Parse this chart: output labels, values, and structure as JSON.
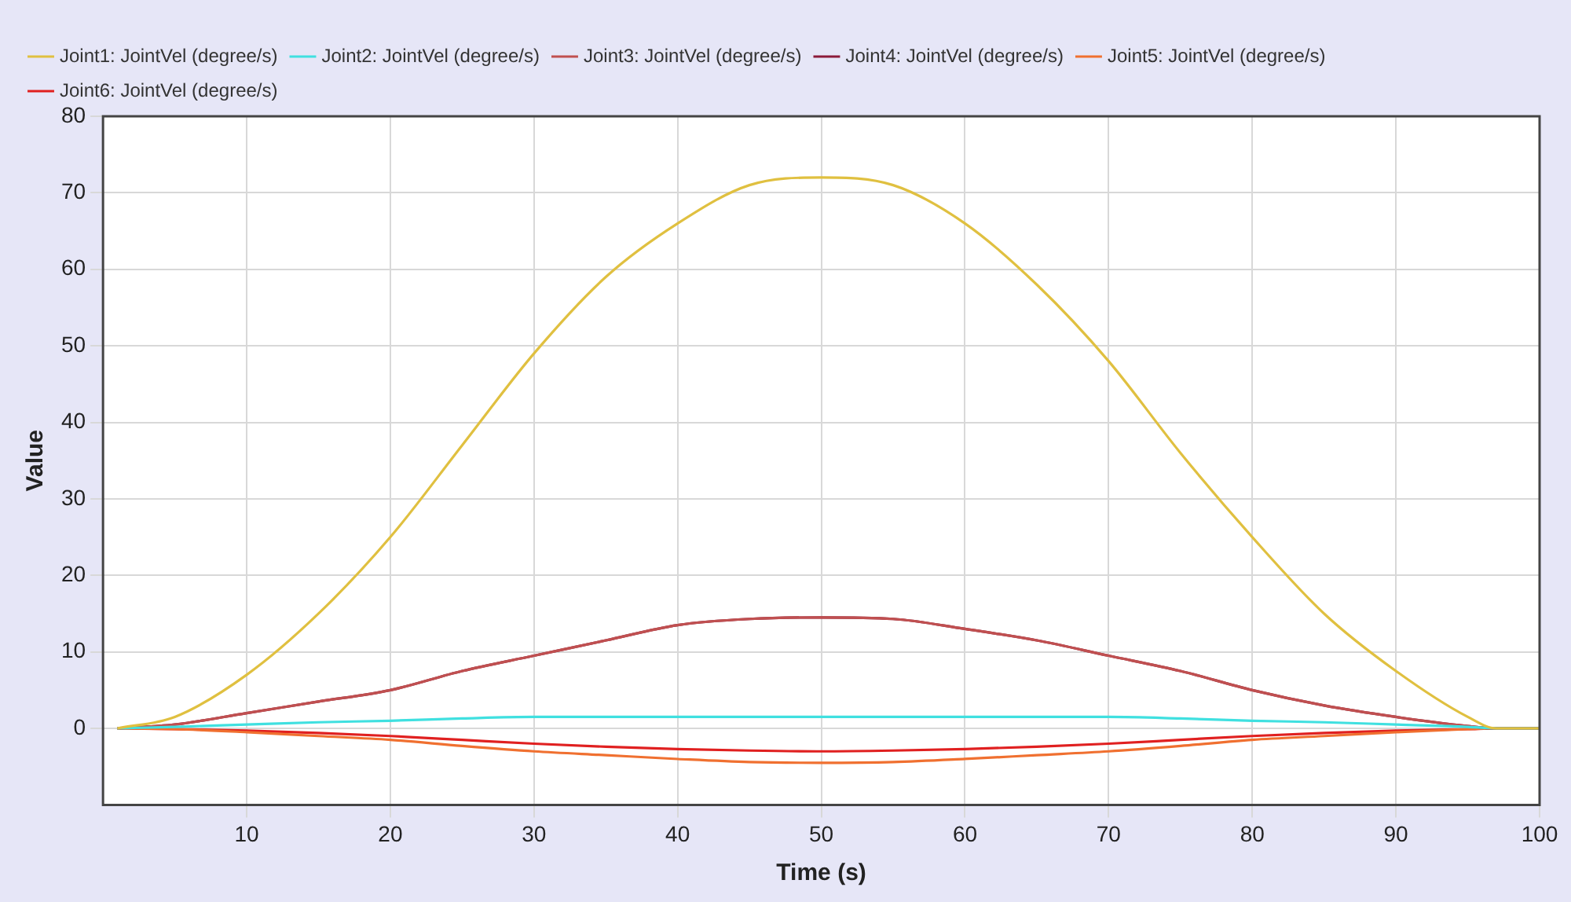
{
  "chart_data": {
    "type": "line",
    "xlabel": "Time (s)",
    "ylabel": "Value",
    "x": [
      1,
      5,
      10,
      15,
      20,
      25,
      30,
      35,
      40,
      45,
      50,
      55,
      60,
      65,
      70,
      75,
      80,
      85,
      90,
      95,
      97,
      100
    ],
    "series": [
      {
        "name": "Joint1: JointVel (degree/s)",
        "color": "#e0c040",
        "values": [
          0,
          1.5,
          7,
          15,
          25,
          37,
          49,
          59,
          66,
          71,
          72,
          71,
          66,
          58,
          48,
          36,
          25,
          15,
          7.5,
          1.5,
          0,
          0
        ]
      },
      {
        "name": "Joint2: JointVel (degree/s)",
        "color": "#40e0e0",
        "values": [
          0,
          0.2,
          0.5,
          0.8,
          1,
          1.3,
          1.5,
          1.5,
          1.5,
          1.5,
          1.5,
          1.5,
          1.5,
          1.5,
          1.5,
          1.3,
          1,
          0.8,
          0.5,
          0.2,
          0,
          0
        ]
      },
      {
        "name": "Joint3: JointVel (degree/s)",
        "color": "#c05050",
        "values": [
          0,
          0.5,
          2,
          3.5,
          5,
          7.5,
          9.5,
          11.5,
          13.5,
          14.3,
          14.5,
          14.3,
          13,
          11.5,
          9.5,
          7.5,
          5,
          3,
          1.5,
          0.3,
          0,
          0
        ]
      },
      {
        "name": "Joint4: JointVel (degree/s)",
        "color": "#8b1a3a",
        "values": [
          0,
          0.5,
          2,
          3.5,
          5,
          7.5,
          9.5,
          11.5,
          13.5,
          14.3,
          14.5,
          14.3,
          13,
          11.5,
          9.5,
          7.5,
          5,
          3,
          1.5,
          0.3,
          0,
          0
        ]
      },
      {
        "name": "Joint5: JointVel (degree/s)",
        "color": "#f07030",
        "values": [
          0,
          -0.1,
          -0.5,
          -1,
          -1.5,
          -2.3,
          -3,
          -3.5,
          -4,
          -4.4,
          -4.5,
          -4.4,
          -4,
          -3.5,
          -3,
          -2.3,
          -1.5,
          -1,
          -0.5,
          -0.1,
          0,
          0
        ]
      },
      {
        "name": "Joint6: JointVel (degree/s)",
        "color": "#e02020",
        "values": [
          0,
          -0.1,
          -0.3,
          -0.6,
          -1,
          -1.5,
          -2,
          -2.4,
          -2.7,
          -2.9,
          -3,
          -2.9,
          -2.7,
          -2.4,
          -2,
          -1.5,
          -1,
          -0.6,
          -0.3,
          -0.1,
          0,
          0
        ]
      }
    ],
    "xlim": [
      0,
      100
    ],
    "xticks": [
      10,
      20,
      30,
      40,
      50,
      60,
      70,
      80,
      90,
      100
    ],
    "ylim": [
      -10,
      80
    ],
    "yticks": [
      0,
      10,
      20,
      30,
      40,
      50,
      60,
      70,
      80
    ],
    "grid": true,
    "legend": "top",
    "marker": "none",
    "line_style": "solid"
  }
}
